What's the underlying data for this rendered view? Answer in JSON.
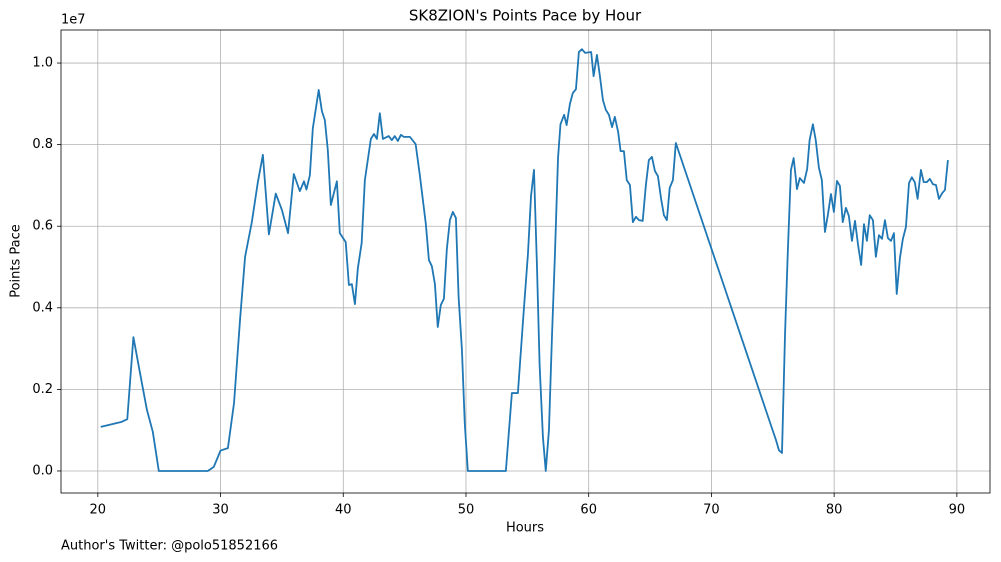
{
  "chart_data": {
    "type": "line",
    "title": "SK8ZION's Points Pace by Hour",
    "x_label": "Hours",
    "y_label": "Points Pace",
    "y_offset_label": "1e7",
    "annotation": "Author's Twitter: @polo51852166",
    "color": "#1f77b4",
    "grid": true,
    "xlim": [
      17,
      92.7
    ],
    "ylim": [
      -0.054,
      1.081
    ],
    "xticks": [
      20,
      30,
      40,
      50,
      60,
      70,
      80,
      90
    ],
    "yticks": [
      {
        "value": 0,
        "label": "0.0"
      },
      0.2,
      0.4,
      0.6,
      0.8,
      {
        "value": 1,
        "label": "1.0"
      }
    ],
    "x": [
      20.24,
      21.9,
      22.4,
      22.9,
      23.42,
      24.0,
      24.48,
      24.97,
      28.96,
      29.45,
      30.0,
      30.6,
      31.1,
      31.6,
      32.0,
      32.55,
      33.04,
      33.45,
      33.94,
      34.5,
      35.0,
      35.5,
      35.97,
      36.46,
      36.8,
      37.0,
      37.28,
      37.52,
      38.0,
      38.26,
      38.5,
      38.74,
      38.99,
      39.48,
      39.72,
      40.2,
      40.46,
      40.7,
      40.95,
      41.19,
      41.5,
      41.76,
      42.25,
      42.5,
      42.74,
      42.98,
      43.23,
      43.7,
      43.96,
      44.2,
      44.45,
      44.7,
      44.94,
      45.43,
      45.9,
      46.24,
      46.73,
      46.98,
      47.22,
      47.47,
      47.7,
      47.95,
      48.2,
      48.44,
      48.69,
      48.93,
      49.18,
      49.4,
      49.67,
      49.9,
      50.15,
      53.25,
      53.74,
      54.23,
      54.7,
      55.05,
      55.3,
      55.54,
      55.78,
      56.0,
      56.27,
      56.5,
      56.76,
      57.0,
      57.25,
      57.5,
      57.7,
      58.0,
      58.2,
      58.47,
      58.7,
      58.96,
      59.2,
      59.45,
      59.7,
      60.2,
      60.4,
      60.67,
      60.9,
      61.16,
      61.4,
      61.65,
      61.9,
      62.13,
      62.4,
      62.6,
      62.87,
      63.1,
      63.36,
      63.6,
      63.85,
      64.1,
      64.4,
      64.66,
      64.9,
      65.15,
      65.4,
      65.64,
      65.9,
      66.13,
      66.37,
      66.6,
      66.86,
      67.1,
      74.93,
      75.26,
      75.5,
      75.75,
      76.0,
      76.23,
      76.48,
      76.7,
      76.97,
      77.2,
      77.54,
      77.8,
      78.0,
      78.27,
      78.5,
      78.76,
      79.0,
      79.25,
      79.5,
      79.74,
      79.98,
      80.23,
      80.47,
      80.7,
      80.96,
      81.2,
      81.45,
      81.7,
      81.94,
      82.2,
      82.43,
      82.67,
      82.9,
      83.16,
      83.4,
      83.65,
      83.9,
      84.14,
      84.38,
      84.63,
      84.87,
      85.1,
      85.36,
      85.6,
      85.85,
      86.1,
      86.33,
      86.57,
      86.8,
      87.07,
      87.3,
      87.55,
      87.8,
      88.05,
      88.3,
      88.54,
      88.8,
      89.03,
      89.27
    ],
    "values": [
      0.108,
      0.12,
      0.127,
      0.328,
      0.243,
      0.15,
      0.096,
      0,
      0,
      0.01,
      0.05,
      0.056,
      0.167,
      0.375,
      0.525,
      0.61,
      0.708,
      0.775,
      0.58,
      0.68,
      0.64,
      0.583,
      0.728,
      0.686,
      0.71,
      0.69,
      0.725,
      0.84,
      0.934,
      0.882,
      0.86,
      0.787,
      0.652,
      0.71,
      0.583,
      0.561,
      0.456,
      0.458,
      0.409,
      0.497,
      0.559,
      0.713,
      0.814,
      0.826,
      0.814,
      0.877,
      0.814,
      0.821,
      0.811,
      0.821,
      0.809,
      0.824,
      0.819,
      0.819,
      0.801,
      0.725,
      0.605,
      0.517,
      0.502,
      0.458,
      0.353,
      0.407,
      0.422,
      0.544,
      0.615,
      0.635,
      0.62,
      0.426,
      0.297,
      0.118,
      0,
      0,
      0.191,
      0.191,
      0.39,
      0.532,
      0.674,
      0.738,
      0.507,
      0.26,
      0.083,
      0,
      0.1,
      0.324,
      0.532,
      0.767,
      0.85,
      0.873,
      0.848,
      0.9,
      0.926,
      0.936,
      1.027,
      1.034,
      1.025,
      1.027,
      0.968,
      1.02,
      0.971,
      0.909,
      0.885,
      0.873,
      0.843,
      0.868,
      0.831,
      0.784,
      0.784,
      0.713,
      0.701,
      0.61,
      0.623,
      0.615,
      0.613,
      0.701,
      0.762,
      0.77,
      0.735,
      0.723,
      0.667,
      0.627,
      0.615,
      0.694,
      0.713,
      0.804,
      0.105,
      0.076,
      0.051,
      0.044,
      0.338,
      0.542,
      0.738,
      0.767,
      0.691,
      0.718,
      0.706,
      0.74,
      0.811,
      0.85,
      0.811,
      0.743,
      0.713,
      0.586,
      0.63,
      0.679,
      0.635,
      0.711,
      0.699,
      0.61,
      0.645,
      0.625,
      0.564,
      0.613,
      0.556,
      0.505,
      0.605,
      0.564,
      0.627,
      0.615,
      0.525,
      0.578,
      0.569,
      0.615,
      0.571,
      0.564,
      0.583,
      0.434,
      0.522,
      0.569,
      0.598,
      0.706,
      0.72,
      0.708,
      0.667,
      0.738,
      0.708,
      0.708,
      0.716,
      0.703,
      0.701,
      0.667,
      0.681,
      0.689,
      0.762
    ]
  }
}
